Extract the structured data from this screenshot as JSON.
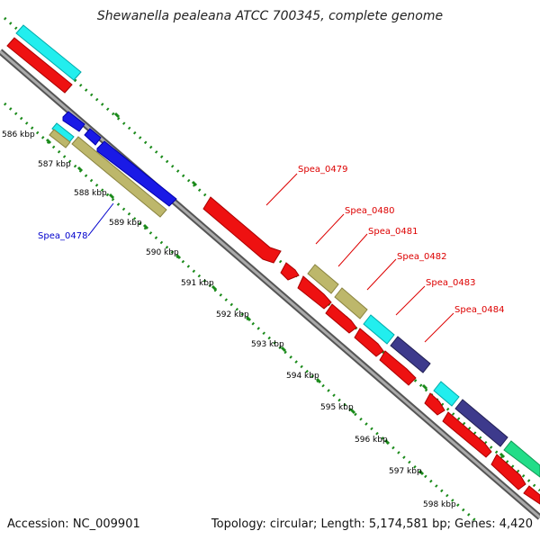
{
  "title": "Shewanella pealeana ATCC 700345, complete genome",
  "footer": {
    "accession": "Accession: NC_009901",
    "summary": "Topology: circular; Length: 5,174,581 bp; Genes: 4,420"
  },
  "ruler_labels": [
    "586 kbp",
    "587 kbp",
    "588 kbp",
    "589 kbp",
    "590 kbp",
    "591 kbp",
    "592 kbp",
    "593 kbp",
    "594 kbp",
    "595 kbp",
    "596 kbp",
    "597 kbp",
    "598 kbp"
  ],
  "gene_labels": {
    "spea_0478": "Spea_0478",
    "spea_0479": "Spea_0479",
    "spea_0480": "Spea_0480",
    "spea_0481": "Spea_0481",
    "spea_0482": "Spea_0482",
    "spea_0483": "Spea_0483",
    "spea_0484": "Spea_0484"
  },
  "colors": {
    "cds_red": "#ee1111",
    "cog_cyan": "#22eeee",
    "cog_olive": "#bdb76b",
    "cog_navy": "#3d3a8c",
    "cog_green": "#22dd88",
    "reverse_blue": "#1a1ae6",
    "backbone": "#888888",
    "ruler_green": "#1a8a1a",
    "label_red": "#dd0000",
    "label_blue": "#0000cc"
  }
}
